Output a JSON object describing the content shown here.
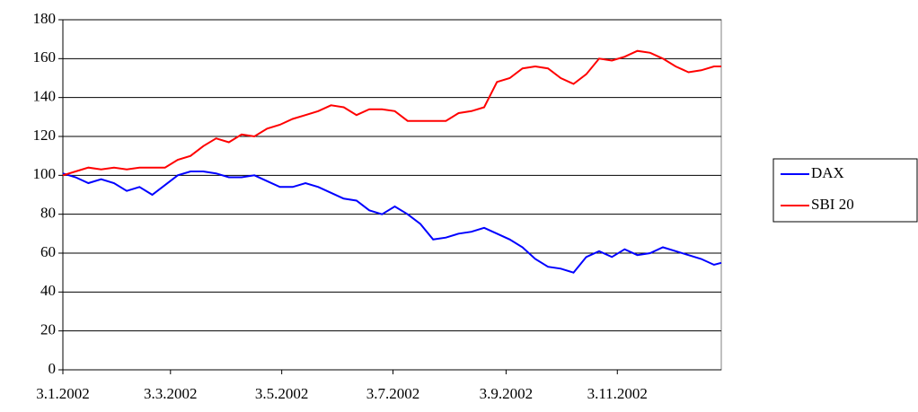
{
  "chart_data": {
    "type": "line",
    "x": [
      "2002-01-03",
      "2002-01-10",
      "2002-01-17",
      "2002-01-24",
      "2002-01-31",
      "2002-02-07",
      "2002-02-14",
      "2002-02-21",
      "2002-02-28",
      "2002-03-07",
      "2002-03-14",
      "2002-03-21",
      "2002-03-28",
      "2002-04-04",
      "2002-04-11",
      "2002-04-18",
      "2002-04-25",
      "2002-05-02",
      "2002-05-09",
      "2002-05-16",
      "2002-05-23",
      "2002-05-30",
      "2002-06-06",
      "2002-06-13",
      "2002-06-20",
      "2002-06-27",
      "2002-07-04",
      "2002-07-11",
      "2002-07-18",
      "2002-07-25",
      "2002-08-01",
      "2002-08-08",
      "2002-08-15",
      "2002-08-22",
      "2002-08-29",
      "2002-09-05",
      "2002-09-12",
      "2002-09-19",
      "2002-09-26",
      "2002-10-03",
      "2002-10-10",
      "2002-10-17",
      "2002-10-24",
      "2002-10-31",
      "2002-11-07",
      "2002-11-14",
      "2002-11-21",
      "2002-11-28",
      "2002-12-05",
      "2002-12-12",
      "2002-12-19",
      "2002-12-26",
      "2002-12-30"
    ],
    "series": [
      {
        "name": "DAX",
        "color": "#0000ff",
        "values": [
          101,
          99,
          96,
          98,
          96,
          92,
          94,
          90,
          95,
          100,
          102,
          102,
          101,
          99,
          99,
          100,
          97,
          94,
          94,
          96,
          94,
          91,
          88,
          87,
          82,
          80,
          84,
          80,
          75,
          67,
          68,
          70,
          71,
          73,
          70,
          67,
          63,
          57,
          53,
          52,
          50,
          58,
          61,
          58,
          62,
          59,
          60,
          63,
          61,
          59,
          57,
          54,
          55
        ]
      },
      {
        "name": "SBI 20",
        "color": "#ff0000",
        "values": [
          100,
          102,
          104,
          103,
          104,
          103,
          104,
          104,
          104,
          108,
          110,
          115,
          119,
          117,
          121,
          120,
          124,
          126,
          129,
          131,
          133,
          136,
          135,
          131,
          134,
          134,
          133,
          128,
          128,
          128,
          128,
          132,
          133,
          135,
          148,
          150,
          155,
          156,
          155,
          150,
          147,
          152,
          160,
          159,
          161,
          164,
          163,
          160,
          156,
          153,
          154,
          156,
          156
        ]
      }
    ],
    "xlim": [
      "2002-01-03",
      "2002-12-30"
    ],
    "xticks": [
      {
        "value": "2002-01-03",
        "label": "3.1.2002"
      },
      {
        "value": "2002-03-03",
        "label": "3.3.2002"
      },
      {
        "value": "2002-05-03",
        "label": "3.5.2002"
      },
      {
        "value": "2002-07-03",
        "label": "3.7.2002"
      },
      {
        "value": "2002-09-03",
        "label": "3.9.2002"
      },
      {
        "value": "2002-11-03",
        "label": "3.11.2002"
      }
    ],
    "ylim": [
      0,
      180
    ],
    "yticks": [
      0,
      20,
      40,
      60,
      80,
      100,
      120,
      140,
      160,
      180
    ],
    "grid": true,
    "legend": "right"
  }
}
